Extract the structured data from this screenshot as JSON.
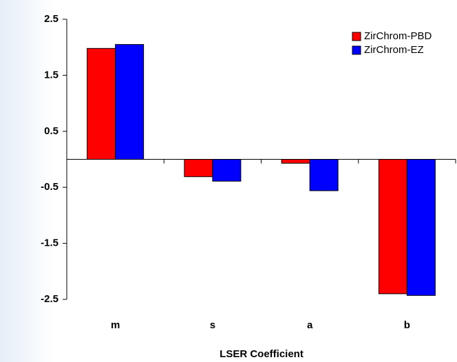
{
  "chart_data": {
    "type": "bar",
    "x_label": "LSER Coefficient",
    "categories": [
      "m",
      "s",
      "a",
      "b"
    ],
    "series": [
      {
        "name": "ZirChrom-PBD",
        "color": "#ff0000",
        "values": [
          1.98,
          -0.31,
          -0.07,
          -2.4
        ]
      },
      {
        "name": "ZirChrom-EZ",
        "color": "#0000ff",
        "values": [
          2.05,
          -0.39,
          -0.56,
          -2.43
        ]
      }
    ],
    "ylim": [
      -2.5,
      2.5
    ],
    "yticks": [
      2.5,
      1.5,
      0.5,
      -0.5,
      -1.5,
      -2.5
    ],
    "grid": false,
    "legend": "top-right"
  }
}
